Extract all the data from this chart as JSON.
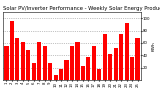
{
  "title": "Solar PV/Inverter Performance - Weekly Solar Energy Production",
  "ylabel": "KWh",
  "bar_color": "#ff0000",
  "background_color": "#ffffff",
  "plot_bg_color": "#ffffff",
  "grid_color": "#888888",
  "values": [
    55,
    95,
    68,
    62,
    48,
    28,
    62,
    55,
    28,
    8,
    18,
    32,
    55,
    62,
    22,
    38,
    55,
    18,
    75,
    42,
    52,
    75,
    92,
    38,
    68
  ],
  "ylim": [
    0,
    110
  ],
  "ytick_values": [
    20,
    40,
    60,
    80,
    100
  ],
  "title_fontsize": 3.8,
  "axis_fontsize": 3.2,
  "tick_fontsize": 2.8,
  "bar_width": 0.75
}
